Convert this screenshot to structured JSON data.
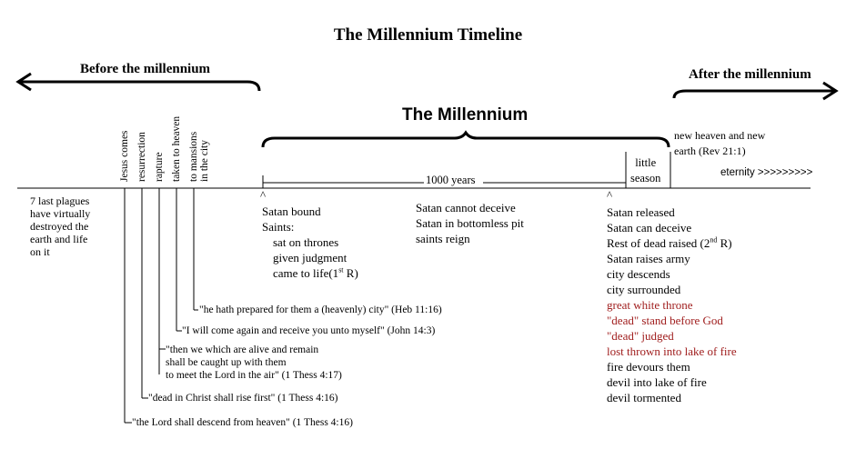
{
  "title": "The Millennium Timeline",
  "before_label": "Before the millennium",
  "after_label": "After the millennium",
  "millennium_label": "The Millennium",
  "new_heaven": [
    "new heaven and new",
    "earth (Rev 21:1)"
  ],
  "little_season": [
    "little",
    "season"
  ],
  "eternity": "eternity >>>>>>>>>",
  "years_label": "1000 years",
  "caret": "^",
  "vertical_labels": [
    [
      "Jesus comes"
    ],
    [
      "resurrection"
    ],
    [
      "rapture"
    ],
    [
      "taken to heaven"
    ],
    [
      "to mansions",
      "in the city"
    ]
  ],
  "plagues": [
    "7 last plagues",
    "have virtually",
    "destroyed the",
    "earth and life",
    "on it"
  ],
  "events_start": {
    "satan_bound": "Satan bound",
    "saints": "Saints:",
    "thrones": "sat on thrones",
    "judgment": "given judgment",
    "came_to_life": "came to life(1",
    "came_to_life_sup": "st",
    "came_to_life_end": " R)"
  },
  "events_mid": [
    "Satan cannot deceive",
    "Satan in bottomless pit",
    "saints reign"
  ],
  "events_end": {
    "released": "Satan released",
    "deceive": "Satan can deceive",
    "rest_dead": "Rest of dead raised (2",
    "rest_dead_sup": "nd",
    "rest_dead_end": " R)",
    "army": "Satan raises army",
    "descends": "city descends",
    "surrounded": "city surrounded",
    "throne": "great white throne",
    "dead_stand": "\"dead\" stand before God",
    "dead_judged": "\"dead\" judged",
    "lost": "lost thrown into lake of fire",
    "fire": "fire devours them",
    "devil_lake": "devil into lake of fire",
    "devil_tormented": "devil tormented"
  },
  "quotes": {
    "mansions": "\"he hath prepared for them a (heavenly) city\" (Heb 11:16)",
    "taken": "\"I will come again and receive you unto myself\" (John 14:3)",
    "rapture": [
      "\"then we which are alive and remain",
      "shall be caught up with them",
      "to meet the Lord in the air\" (1 Thess 4:17)"
    ],
    "resurrection": "\"dead in Christ shall rise first\" (1 Thess 4:16)",
    "jesus": "\"the Lord shall descend from heaven\" (1 Thess 4:16)"
  },
  "colors": {
    "text": "#000000",
    "red": "#a01e1e",
    "background": "#ffffff"
  }
}
